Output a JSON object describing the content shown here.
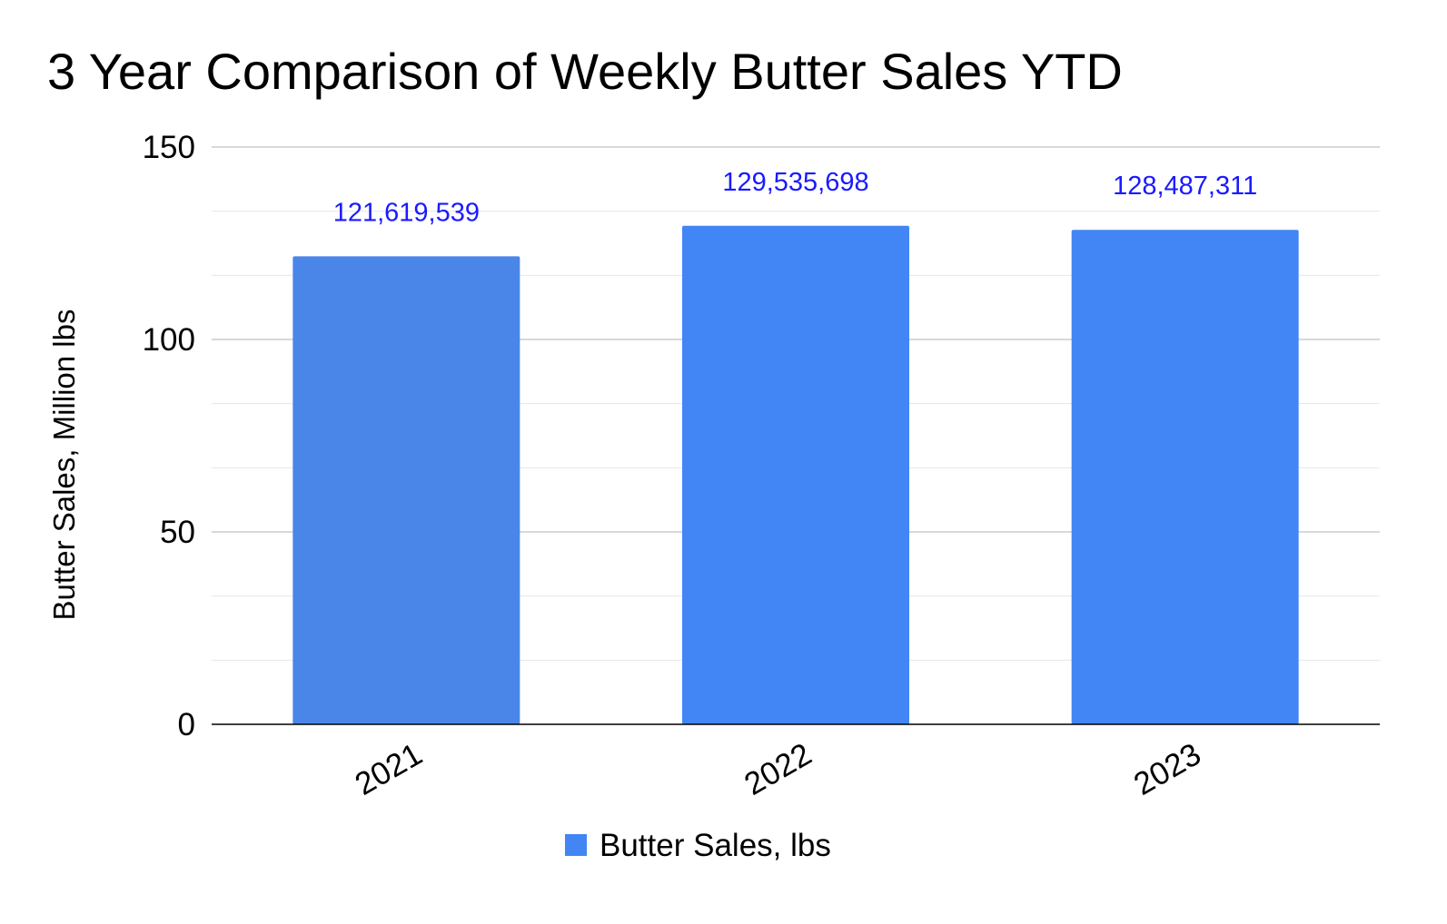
{
  "chart_data": {
    "type": "bar",
    "title": "3 Year Comparison of Weekly Butter Sales YTD",
    "xlabel": "",
    "ylabel": "Butter Sales, Million lbs",
    "categories": [
      "2021",
      "2022",
      "2023"
    ],
    "series": [
      {
        "name": "Butter Sales, lbs",
        "values": [
          121.619539,
          129.535698,
          128.487311
        ],
        "data_labels": [
          "121,619,539",
          "129,535,698",
          "128,487,311"
        ],
        "bar_colors": [
          "#4a86e8",
          "#4285f4",
          "#4285f4"
        ]
      }
    ],
    "ylim": [
      0,
      150
    ],
    "yticks": [
      0,
      50,
      100,
      150
    ],
    "y_tick_labels": [
      "0",
      "50",
      "100",
      "150"
    ],
    "minor_gridlines": true,
    "grid": true,
    "legend_position": "bottom",
    "x_tick_rotation": "-30deg",
    "colors": {
      "series": "#4285f4",
      "data_label": "#1a1aff",
      "gridline": "#cccccc",
      "minor_gridline": "#e6e6e6",
      "baseline": "#000000"
    }
  }
}
